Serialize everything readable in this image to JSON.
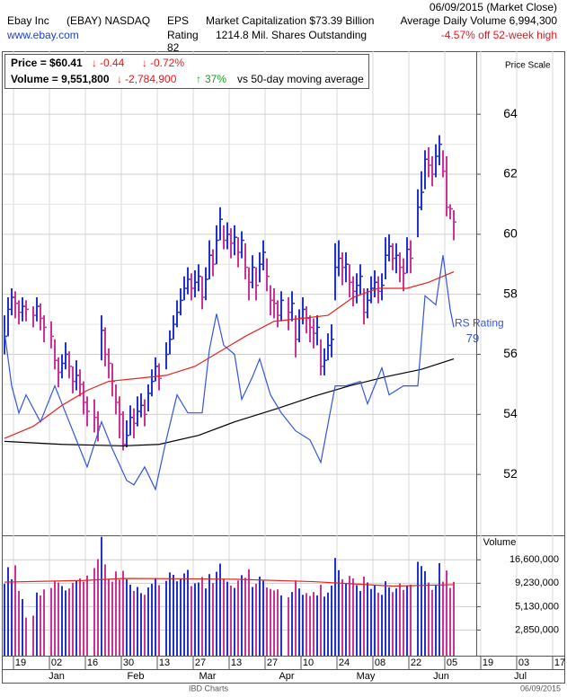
{
  "header": {
    "company": "Ebay Inc",
    "symbol": "(EBAY) NASDAQ",
    "website": "www.ebay.com",
    "eps_label": "EPS",
    "rating_label": "Rating",
    "eps_rating": "82",
    "market_cap": "Market Capitalization $73.39 Billion",
    "shares": "1214.8 Mil. Shares Outstanding",
    "date": "06/09/2015 (Market Close)",
    "avg_volume": "Average Daily Volume 6,994,300",
    "off_high": "-4.57% off 52-week high",
    "price": "Price = $60.41",
    "price_change": "-0.44",
    "price_change_pct": "-0.72%",
    "volume": "Volume = 9,551,800",
    "volume_change": "-2,784,900",
    "volume_change_pct": "37%",
    "volume_vs": "vs 50-day moving average",
    "footer_source": "IBD Charts",
    "footer_date": "06/09/2015"
  },
  "chart_data": [
    {
      "type": "ohlc",
      "ylabel": "Price Scale",
      "up_color": "#2233cc",
      "down_color": "#cc3399",
      "grid": true,
      "xlim": [
        "2014-12-16",
        "2015-07-23"
      ],
      "ylim": [
        50,
        66.1
      ],
      "yticks": [
        52,
        54,
        56,
        58,
        60,
        62,
        64
      ],
      "xticks": [
        {
          "value": "2014-12-19",
          "label": "19"
        },
        {
          "value": "2015-01-02",
          "label": "02"
        },
        {
          "value": "2015-01-16",
          "label": "16"
        },
        {
          "value": "2015-01-30",
          "label": "30"
        },
        {
          "value": "2015-02-13",
          "label": "13"
        },
        {
          "value": "2015-02-27",
          "label": "27"
        },
        {
          "value": "2015-03-13",
          "label": "13"
        },
        {
          "value": "2015-03-27",
          "label": "27"
        },
        {
          "value": "2015-04-10",
          "label": "10"
        },
        {
          "value": "2015-04-24",
          "label": "24"
        },
        {
          "value": "2015-05-08",
          "label": "08"
        },
        {
          "value": "2015-05-22",
          "label": "22"
        },
        {
          "value": "2015-06-05",
          "label": "05"
        },
        {
          "value": "2015-06-19",
          "label": "19"
        },
        {
          "value": "2015-07-03",
          "label": "03"
        },
        {
          "value": "2015-07-17",
          "label": "17"
        }
      ],
      "xmonths": [
        {
          "value": "2015-01-01",
          "label": "Jan"
        },
        {
          "value": "2015-02-01",
          "label": "Feb"
        },
        {
          "value": "2015-03-01",
          "label": "Mar"
        },
        {
          "value": "2015-04-01",
          "label": "Apr"
        },
        {
          "value": "2015-05-01",
          "label": "May"
        },
        {
          "value": "2015-06-01",
          "label": "Jun"
        },
        {
          "value": "2015-07-01",
          "label": "Jul"
        }
      ],
      "x": [
        "2014-12-16",
        "2014-12-17",
        "2014-12-18",
        "2014-12-19",
        "2014-12-22",
        "2014-12-23",
        "2014-12-24",
        "2014-12-26",
        "2014-12-29",
        "2014-12-30",
        "2014-12-31",
        "2015-01-02",
        "2015-01-05",
        "2015-01-06",
        "2015-01-07",
        "2015-01-08",
        "2015-01-09",
        "2015-01-12",
        "2015-01-13",
        "2015-01-14",
        "2015-01-15",
        "2015-01-16",
        "2015-01-20",
        "2015-01-21",
        "2015-01-22",
        "2015-01-23",
        "2015-01-26",
        "2015-01-27",
        "2015-01-28",
        "2015-01-29",
        "2015-01-30",
        "2015-02-02",
        "2015-02-03",
        "2015-02-04",
        "2015-02-05",
        "2015-02-06",
        "2015-02-09",
        "2015-02-10",
        "2015-02-11",
        "2015-02-12",
        "2015-02-13",
        "2015-02-17",
        "2015-02-18",
        "2015-02-19",
        "2015-02-20",
        "2015-02-23",
        "2015-02-24",
        "2015-02-25",
        "2015-02-26",
        "2015-02-27",
        "2015-03-02",
        "2015-03-03",
        "2015-03-04",
        "2015-03-05",
        "2015-03-06",
        "2015-03-09",
        "2015-03-10",
        "2015-03-11",
        "2015-03-12",
        "2015-03-13",
        "2015-03-16",
        "2015-03-17",
        "2015-03-18",
        "2015-03-19",
        "2015-03-20",
        "2015-03-23",
        "2015-03-24",
        "2015-03-25",
        "2015-03-26",
        "2015-03-27",
        "2015-03-30",
        "2015-03-31",
        "2015-04-01",
        "2015-04-02",
        "2015-04-06",
        "2015-04-07",
        "2015-04-08",
        "2015-04-09",
        "2015-04-10",
        "2015-04-13",
        "2015-04-14",
        "2015-04-15",
        "2015-04-16",
        "2015-04-17",
        "2015-04-20",
        "2015-04-21",
        "2015-04-22",
        "2015-04-23",
        "2015-04-24",
        "2015-04-27",
        "2015-04-28",
        "2015-04-29",
        "2015-04-30",
        "2015-05-01",
        "2015-05-04",
        "2015-05-05",
        "2015-05-06",
        "2015-05-07",
        "2015-05-08",
        "2015-05-11",
        "2015-05-12",
        "2015-05-13",
        "2015-05-14",
        "2015-05-15",
        "2015-05-18",
        "2015-05-19",
        "2015-05-20",
        "2015-05-21",
        "2015-05-22",
        "2015-05-26",
        "2015-05-27",
        "2015-05-28",
        "2015-05-29",
        "2015-06-01",
        "2015-06-02",
        "2015-06-03",
        "2015-06-04",
        "2015-06-05",
        "2015-06-08",
        "2015-06-09"
      ],
      "high": [
        57.3,
        57.9,
        58.2,
        58.1,
        57.8,
        57.9,
        57.8,
        57.6,
        57.9,
        57.7,
        57.3,
        57.1,
        56.5,
        55.9,
        56.0,
        56.4,
        56.1,
        55.6,
        55.8,
        55.5,
        55.1,
        54.6,
        54.5,
        54.1,
        57.3,
        56.9,
        56.2,
        55.7,
        55.0,
        54.6,
        54.1,
        53.8,
        54.3,
        54.2,
        54.6,
        54.7,
        54.5,
        55.0,
        55.5,
        55.9,
        55.7,
        56.4,
        56.8,
        57.3,
        57.8,
        58.2,
        58.6,
        58.9,
        58.7,
        58.8,
        59.0,
        58.6,
        58.9,
        59.8,
        59.5,
        60.3,
        60.9,
        60.3,
        60.4,
        60.2,
        60.3,
        59.9,
        60.1,
        59.7,
        58.9,
        59.3,
        58.9,
        59.4,
        59.8,
        59.2,
        58.3,
        58.2,
        57.8,
        58.1,
        57.9,
        58.1,
        57.3,
        57.5,
        57.9,
        57.6,
        57.3,
        57.2,
        57.3,
        56.5,
        56.2,
        56.7,
        57.0,
        59.7,
        59.8,
        59.4,
        59.4,
        59.0,
        58.6,
        58.7,
        59.0,
        58.2,
        58.2,
        58.6,
        58.8,
        58.6,
        58.7,
        59.9,
        60.0,
        59.7,
        59.7,
        59.4,
        59.2,
        59.9,
        59.8,
        61.5,
        62.1,
        62.8,
        62.9,
        62.6,
        63.0,
        63.3,
        62.8,
        62.6,
        61.0,
        60.8
      ],
      "low": [
        56.0,
        56.6,
        57.3,
        57.2,
        57.0,
        57.1,
        57.1,
        56.9,
        57.1,
        56.8,
        56.4,
        56.2,
        55.5,
        54.9,
        55.2,
        55.5,
        55.2,
        54.7,
        54.8,
        54.6,
        54.0,
        53.6,
        53.4,
        53.1,
        55.8,
        55.6,
        55.2,
        54.6,
        54.0,
        53.2,
        52.8,
        52.9,
        53.3,
        53.2,
        53.6,
        53.9,
        53.6,
        54.1,
        54.6,
        55.1,
        54.8,
        55.5,
        56.0,
        56.5,
        56.9,
        57.3,
        57.8,
        58.0,
        57.8,
        57.9,
        58.1,
        57.5,
        57.8,
        58.5,
        58.6,
        59.0,
        59.8,
        59.5,
        59.5,
        59.2,
        59.3,
        58.9,
        59.2,
        58.5,
        57.8,
        58.2,
        57.8,
        58.4,
        58.8,
        58.1,
        57.3,
        57.2,
        56.9,
        57.1,
        56.8,
        57.1,
        55.9,
        56.4,
        57.0,
        56.7,
        56.4,
        56.2,
        56.3,
        55.3,
        55.3,
        55.8,
        55.9,
        57.8,
        58.6,
        58.3,
        58.4,
        57.9,
        57.6,
        57.7,
        58.0,
        57.0,
        57.2,
        57.7,
        57.9,
        57.7,
        57.8,
        58.5,
        59.1,
        58.8,
        58.7,
        58.4,
        58.1,
        58.7,
        58.7,
        59.9,
        60.8,
        61.5,
        61.9,
        61.6,
        61.9,
        62.3,
        61.9,
        60.6,
        60.5,
        59.8
      ],
      "close": [
        56.6,
        57.5,
        57.9,
        57.7,
        57.4,
        57.6,
        57.5,
        57.3,
        57.6,
        57.2,
        56.9,
        56.6,
        55.8,
        55.4,
        55.7,
        56.0,
        55.6,
        55.1,
        55.3,
        55.0,
        54.4,
        54.1,
        53.9,
        53.6,
        56.8,
        56.0,
        55.7,
        55.1,
        54.4,
        54.0,
        53.0,
        53.3,
        53.9,
        53.7,
        54.1,
        54.3,
        54.0,
        54.7,
        55.1,
        55.6,
        55.2,
        56.0,
        56.5,
        57.0,
        57.4,
        57.8,
        58.2,
        58.5,
        58.2,
        58.4,
        58.6,
        57.9,
        58.5,
        59.3,
        59.0,
        59.8,
        60.5,
        59.8,
        60.0,
        59.7,
        59.9,
        59.4,
        59.8,
        58.9,
        58.4,
        58.9,
        58.3,
        59.0,
        59.4,
        58.6,
        57.8,
        57.7,
        57.3,
        57.8,
        57.4,
        57.7,
        56.5,
        57.2,
        57.5,
        57.2,
        56.9,
        56.7,
        56.9,
        55.6,
        55.8,
        56.3,
        56.5,
        58.9,
        59.2,
        58.9,
        59.0,
        58.4,
        58.1,
        58.3,
        58.6,
        57.4,
        57.8,
        58.2,
        58.4,
        58.1,
        58.3,
        59.3,
        59.6,
        59.2,
        59.3,
        58.9,
        58.7,
        59.5,
        59.2,
        60.9,
        61.4,
        62.5,
        62.3,
        62.0,
        62.6,
        63.0,
        62.1,
        60.9,
        60.85,
        60.41
      ],
      "lines": [
        {
          "color": "#e8211c",
          "x": [
            "2014-12-16",
            "2014-12-26",
            "2015-01-07",
            "2015-01-16",
            "2015-01-26",
            "2015-02-05",
            "2015-02-17",
            "2015-02-27",
            "2015-03-10",
            "2015-03-19",
            "2015-03-31",
            "2015-04-10",
            "2015-04-21",
            "2015-04-30",
            "2015-05-11",
            "2015-05-21",
            "2015-05-29",
            "2015-06-09"
          ],
          "values": [
            53.2,
            53.6,
            54.3,
            54.8,
            55.1,
            55.2,
            55.3,
            55.6,
            56.1,
            56.6,
            57.1,
            57.2,
            57.3,
            57.9,
            58.2,
            58.2,
            58.4,
            58.75
          ]
        },
        {
          "color": "#000000",
          "x": [
            "2014-12-16",
            "2015-01-07",
            "2015-01-30",
            "2015-02-13",
            "2015-03-02",
            "2015-03-16",
            "2015-04-01",
            "2015-04-15",
            "2015-04-29",
            "2015-05-13",
            "2015-05-27",
            "2015-06-09"
          ],
          "values": [
            53.1,
            53.0,
            52.95,
            53.0,
            53.3,
            53.75,
            54.2,
            54.6,
            54.95,
            55.25,
            55.5,
            55.85
          ]
        },
        {
          "name": "RS Rating",
          "rating": 79,
          "color": "#3355dd",
          "x": [
            "2014-12-16",
            "2014-12-18",
            "2014-12-22",
            "2014-12-24",
            "2014-12-30",
            "2015-01-05",
            "2015-01-09",
            "2015-01-14",
            "2015-01-16",
            "2015-01-22",
            "2015-01-27",
            "2015-02-02",
            "2015-02-04",
            "2015-02-09",
            "2015-02-12",
            "2015-02-17",
            "2015-02-20",
            "2015-02-25",
            "2015-03-03",
            "2015-03-05",
            "2015-03-09",
            "2015-03-11",
            "2015-03-16",
            "2015-03-18",
            "2015-03-23",
            "2015-03-25",
            "2015-03-30",
            "2015-04-02",
            "2015-04-08",
            "2015-04-14",
            "2015-04-17",
            "2015-04-23",
            "2015-04-28",
            "2015-05-04",
            "2015-05-06",
            "2015-05-12",
            "2015-05-14",
            "2015-05-20",
            "2015-05-26",
            "2015-05-28",
            "2015-06-02",
            "2015-06-04",
            "2015-06-08",
            "2015-06-09"
          ],
          "values": [
            56.75,
            54.95,
            54.05,
            54.65,
            53.75,
            54.95,
            53.75,
            52.85,
            52.25,
            53.75,
            52.85,
            51.8,
            51.65,
            52.25,
            51.5,
            53.15,
            54.65,
            54.05,
            54.05,
            56.15,
            57.35,
            56.3,
            56.0,
            54.5,
            55.25,
            55.85,
            54.65,
            54.05,
            53.45,
            53.15,
            52.4,
            54.95,
            54.95,
            55.1,
            54.35,
            55.55,
            54.65,
            54.95,
            54.95,
            57.95,
            57.65,
            59.3,
            57.5,
            56.9
          ]
        }
      ]
    },
    {
      "type": "bar",
      "ylabel": "Volume",
      "log": true,
      "ylim": [
        1500000,
        30000000
      ],
      "yticks": [
        {
          "value": 2850000,
          "label": "2,850,000"
        },
        {
          "value": 5130000,
          "label": "5,130,000"
        },
        {
          "value": 9230000,
          "label": "9,230,000"
        },
        {
          "value": 16600000,
          "label": "16,600,000"
        }
      ],
      "values": [
        9100000,
        13800000,
        10200000,
        14500000,
        7600000,
        6200000,
        3900000,
        4100000,
        7300000,
        6800000,
        7900000,
        8200000,
        9800000,
        9400000,
        8600000,
        7700000,
        8100000,
        9300000,
        9900000,
        10400000,
        9600000,
        11200000,
        13500000,
        16900000,
        29500000,
        14800000,
        10300000,
        9600000,
        12400000,
        10100000,
        12600000,
        10200000,
        8900000,
        7600000,
        8400000,
        7200000,
        6900000,
        8300000,
        9100000,
        10500000,
        8800000,
        9800000,
        12100000,
        11400000,
        9700000,
        10300000,
        11800000,
        12900000,
        8600000,
        9200000,
        9400000,
        10800000,
        8100000,
        11600000,
        9300000,
        12300000,
        15100000,
        10200000,
        9600000,
        8700000,
        8200000,
        9900000,
        11300000,
        10600000,
        13100000,
        8400000,
        9100000,
        10900000,
        9800000,
        8300000,
        8000000,
        7700000,
        7900000,
        6800000,
        6500000,
        7400000,
        9900000,
        8100000,
        6900000,
        7200000,
        6700000,
        7400000,
        6800000,
        8900000,
        6600000,
        7300000,
        8700000,
        17400000,
        12800000,
        10200000,
        9300000,
        11100000,
        10400000,
        8800000,
        7600000,
        10900000,
        9400000,
        8000000,
        8700000,
        7300000,
        6900000,
        9700000,
        8300000,
        7400000,
        8100000,
        9200000,
        7800000,
        8600000,
        8900000,
        15800000,
        14200000,
        12500000,
        9400000,
        7800000,
        8900000,
        15300000,
        9600000,
        12700000,
        8200000,
        9551800
      ],
      "lines": [
        {
          "color": "#e8211c",
          "x": [
            "2014-12-16",
            "2015-01-15",
            "2015-01-30",
            "2015-02-27",
            "2015-03-16",
            "2015-04-15",
            "2015-05-15",
            "2015-06-09"
          ],
          "values": [
            9500000,
            9900000,
            10400000,
            10300000,
            10200000,
            9600000,
            8600000,
            8900000
          ]
        }
      ]
    }
  ]
}
